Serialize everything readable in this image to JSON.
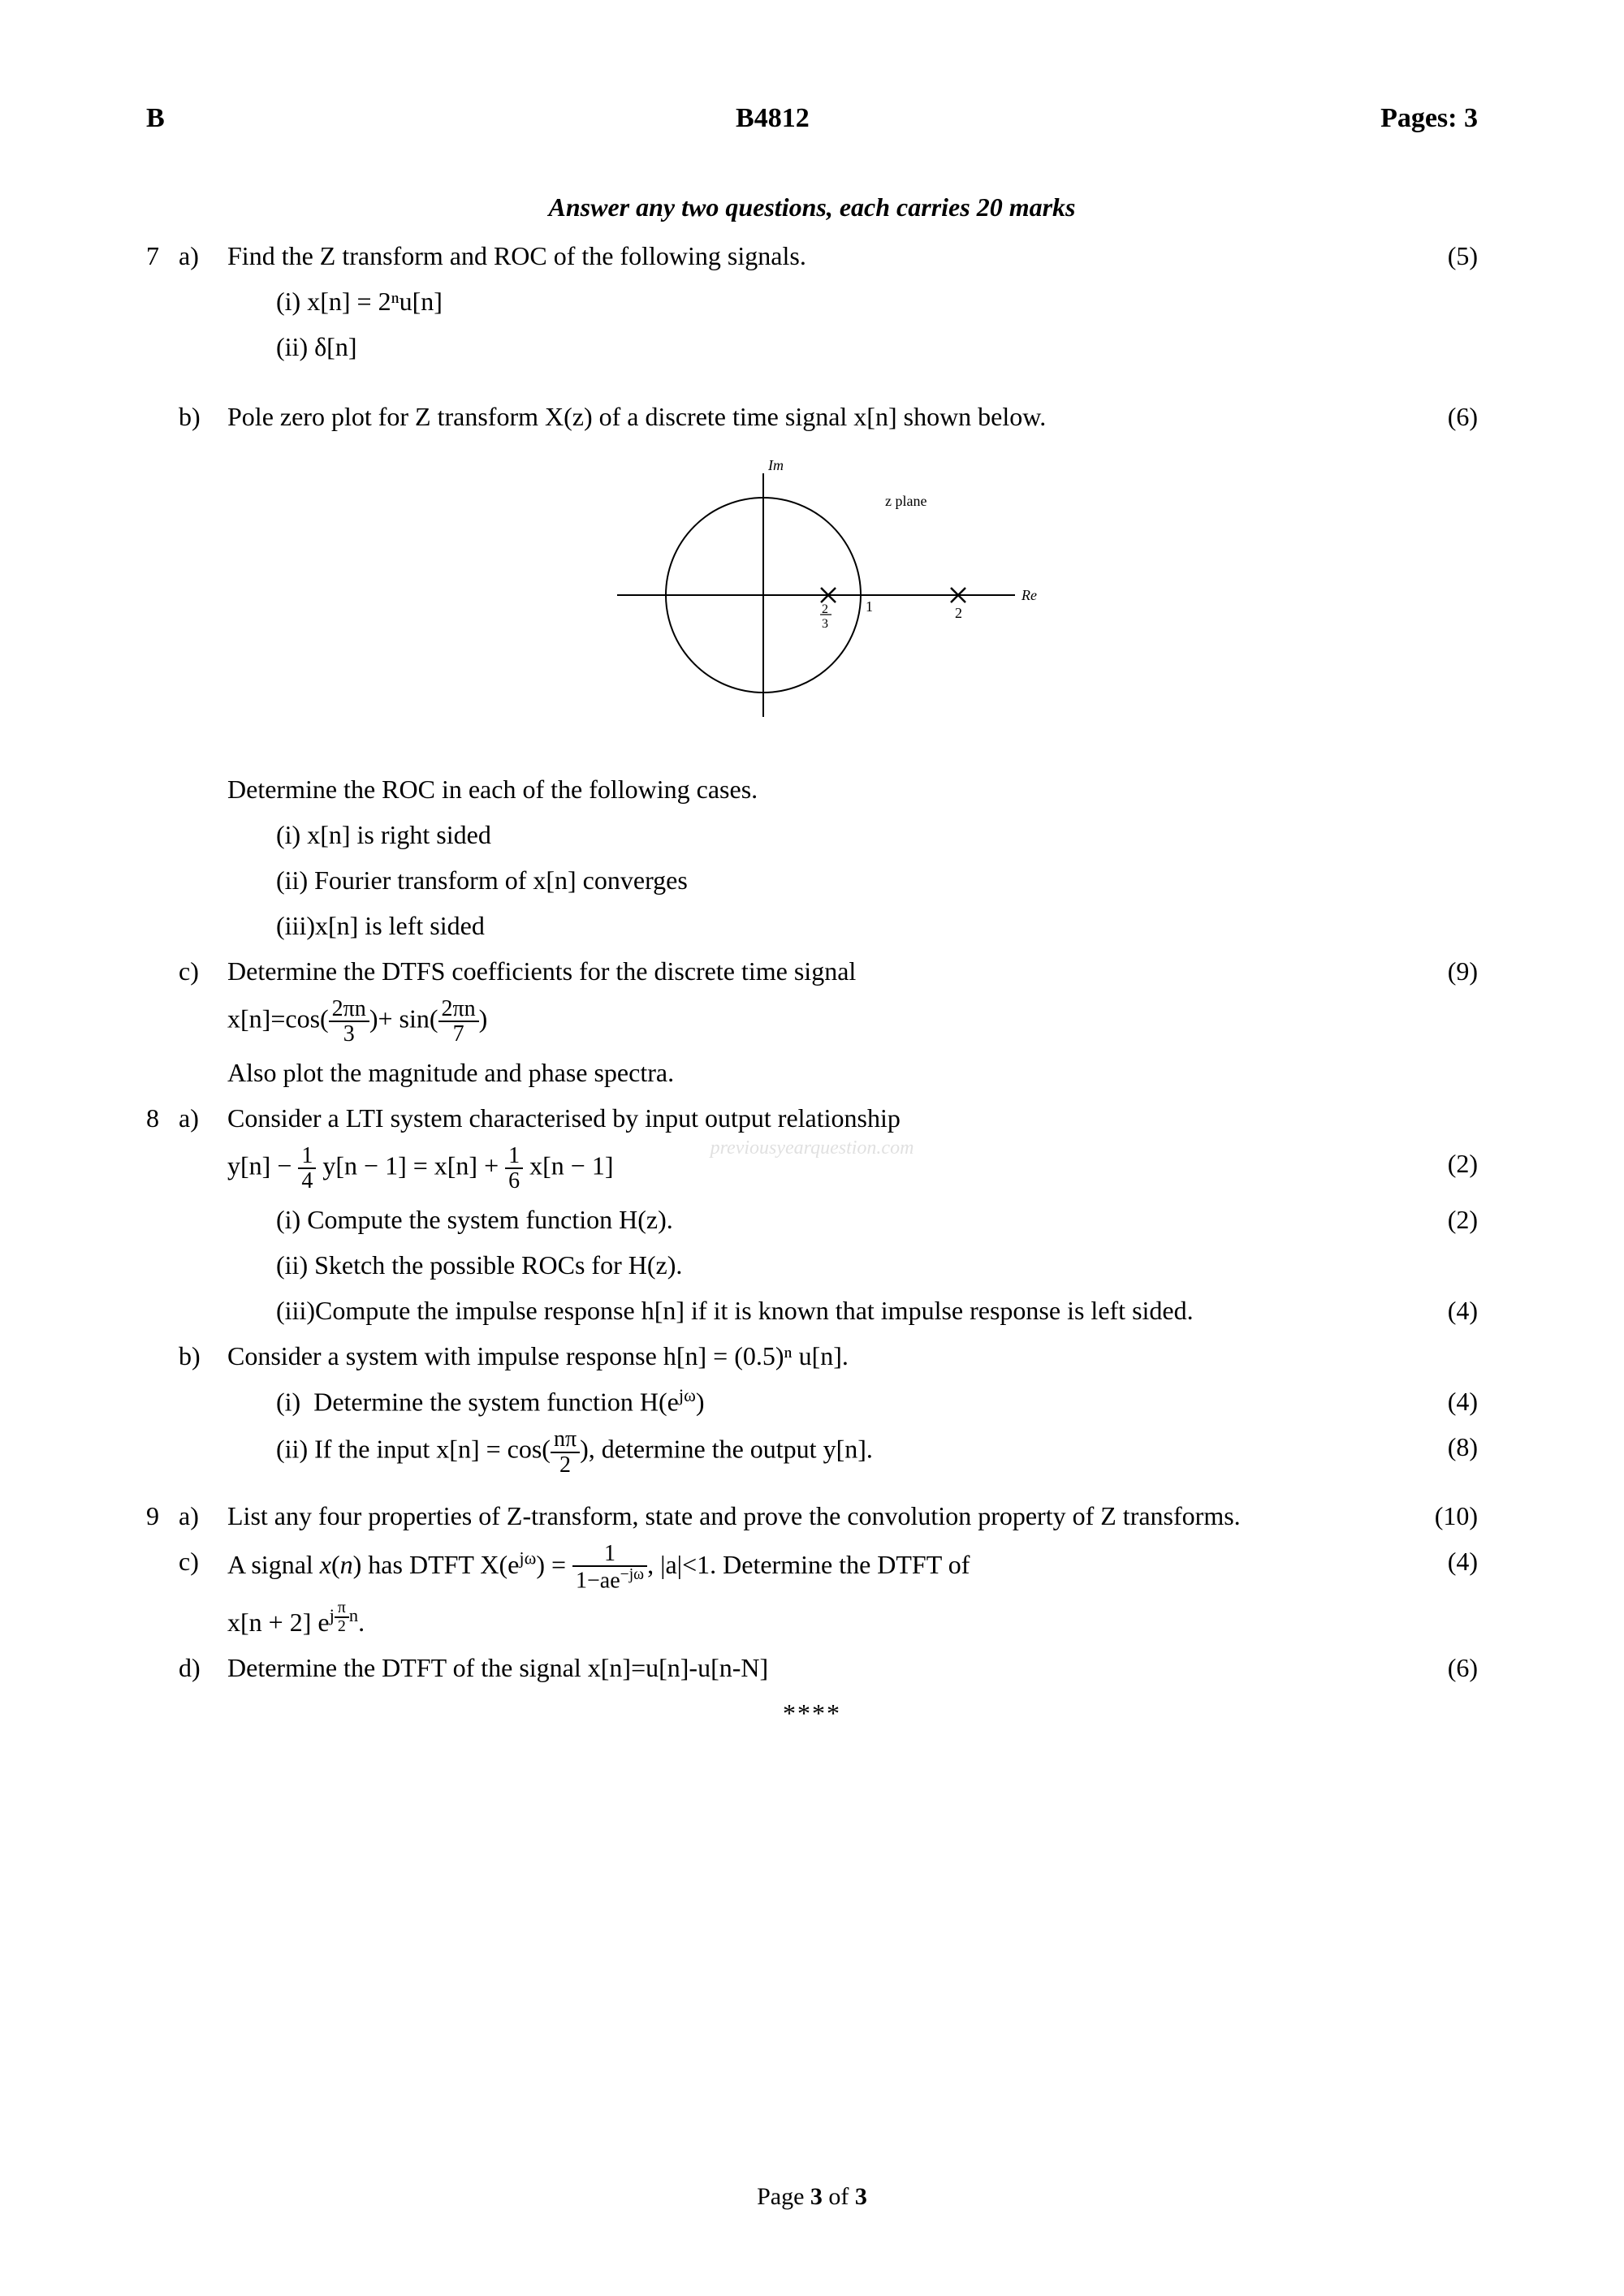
{
  "header": {
    "left": "B",
    "center": "B4812",
    "right": "Pages: 3"
  },
  "instruction": "Answer any two questions, each carries 20 marks",
  "q7": {
    "a": {
      "text": "Find the Z transform and ROC of the following signals.",
      "marks": "(5)",
      "i": "(i)  x[n] = 2ⁿu[n]",
      "ii": "(ii) δ[n]"
    },
    "b": {
      "text": "Pole zero plot for Z transform X(z) of a discrete time signal x[n] shown below.",
      "marks": "(6)",
      "post": "Determine the ROC in each of the following cases.",
      "i": "(i)  x[n] is right sided",
      "ii": "(ii) Fourier transform of x[n] converges",
      "iii": "(iii)x[n] is left sided"
    },
    "c": {
      "text": "Determine the DTFS coefficients for the discrete time signal",
      "marks": "(9)",
      "eq_pre": "x[n]=cos(",
      "eq_mid": ")+ sin(",
      "eq_post": ")",
      "frac1_num": "2πn",
      "frac1_den": "3",
      "frac2_num": "2πn",
      "frac2_den": "7",
      "post": "Also plot the magnitude and phase spectra."
    }
  },
  "q8": {
    "a": {
      "text": "Consider a LTI system characterised by input output relationship",
      "eq_lhs1": "y[n] − ",
      "eq_f1_num": "1",
      "eq_f1_den": "4",
      "eq_lhs2": " y[n − 1] = x[n] + ",
      "eq_f2_num": "1",
      "eq_f2_den": "6",
      "eq_lhs3": " x[n − 1]",
      "marks_eq": "(2)",
      "i": "(i)  Compute the system function H(z).",
      "marks_i": "(2)",
      "ii": "(ii) Sketch the possible ROCs for H(z).",
      "iii": "(iii)Compute the impulse response h[n] if it is known that impulse response is left sided.",
      "marks_iii": "(4)"
    },
    "b": {
      "text": "Consider a system with impulse response h[n] = (0.5)ⁿ u[n].",
      "i": "(i)  Determine the system function H(e^{jω})",
      "marks_i": "(4)",
      "ii_pre": "(ii) If the input x[n] = cos(",
      "ii_frac_num": "nπ",
      "ii_frac_den": "2",
      "ii_post": "), determine the output y[n].",
      "marks_ii": "(8)"
    }
  },
  "q9": {
    "a": {
      "text": "List any four properties of  Z-transform, state and prove the convolution property of Z transforms.",
      "marks": "(10)"
    },
    "c": {
      "text_pre": "A signal x(n) has DTFT X(e^{jω}) = ",
      "frac_num": "1",
      "frac_den": "1−ae^{−jω}",
      "text_post": ", |a|<1. Determine the DTFT of",
      "line2_pre": "x[n + 2] e^{j",
      "line2_frac_num": "π",
      "line2_frac_den": "2",
      "line2_post": "n}.",
      "marks": "(4)"
    },
    "d": {
      "text": "Determine the DTFT of the signal x[n]=u[n]-u[n-N]",
      "marks": "(6)"
    }
  },
  "diagram": {
    "type": "pole-zero-plot",
    "im_label": "Im",
    "re_label": "Re",
    "plane_label": "z plane",
    "unit_circle_radius": 1,
    "unit_label": "1",
    "poles": [
      {
        "x": 0.667,
        "label_num": "2",
        "label_den": "3"
      },
      {
        "x": 2.0,
        "label": "2"
      }
    ],
    "stroke": "#000000",
    "fontsize": 18
  },
  "watermark": "previousyearquestion.com",
  "end_stars": "****",
  "footer_pre": "Page ",
  "footer_cur": "3",
  "footer_mid": " of ",
  "footer_tot": "3"
}
